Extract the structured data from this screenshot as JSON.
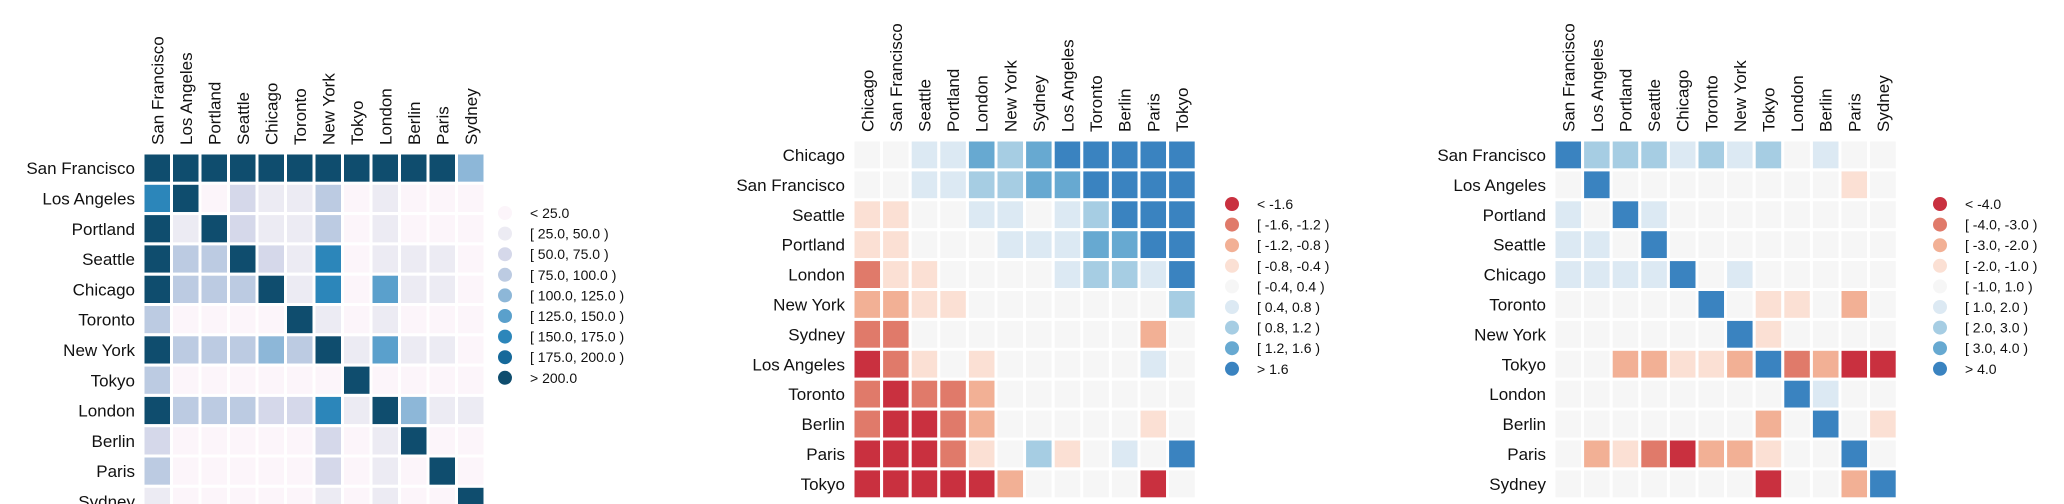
{
  "chart_data": [
    {
      "type": "heatmap",
      "title": "",
      "columns": [
        "San Francisco",
        "Los Angeles",
        "Portland",
        "Seattle",
        "Chicago",
        "Toronto",
        "New York",
        "Tokyo",
        "London",
        "Berlin",
        "Paris",
        "Sydney"
      ],
      "rows": [
        "San Francisco",
        "Los Angeles",
        "Portland",
        "Seattle",
        "Chicago",
        "Toronto",
        "New York",
        "Tokyo",
        "London",
        "Berlin",
        "Paris",
        "Sydney"
      ],
      "legend": {
        "position": "right",
        "labels": [
          "< 25.0",
          "[ 25.0, 50.0 )",
          "[ 50.0, 75.0 )",
          "[ 75.0, 100.0 )",
          "[ 100.0, 125.0 )",
          "[ 125.0, 150.0 )",
          "[ 150.0, 175.0 )",
          "[ 175.0, 200.0 )",
          "> 200.0"
        ],
        "colors": [
          "#fcf5fa",
          "#ecebf3",
          "#d5d8ea",
          "#bccbe2",
          "#8db7d8",
          "#5aa0cc",
          "#2c86ba",
          "#16699a",
          "#0f4d6e"
        ]
      },
      "bins": [
        [
          8,
          8,
          8,
          8,
          8,
          8,
          8,
          8,
          8,
          8,
          8,
          4
        ],
        [
          6,
          8,
          0,
          2,
          1,
          1,
          3,
          0,
          1,
          0,
          0,
          0
        ],
        [
          8,
          1,
          8,
          2,
          1,
          1,
          3,
          0,
          1,
          0,
          0,
          0
        ],
        [
          8,
          3,
          3,
          8,
          2,
          1,
          6,
          0,
          1,
          1,
          1,
          0
        ],
        [
          8,
          3,
          3,
          3,
          8,
          1,
          6,
          0,
          5,
          1,
          1,
          0
        ],
        [
          3,
          0,
          0,
          0,
          0,
          8,
          1,
          0,
          1,
          0,
          0,
          0
        ],
        [
          8,
          3,
          3,
          3,
          4,
          3,
          8,
          1,
          5,
          1,
          1,
          0
        ],
        [
          3,
          0,
          0,
          0,
          0,
          0,
          0,
          8,
          0,
          0,
          0,
          0
        ],
        [
          8,
          3,
          3,
          3,
          2,
          2,
          6,
          1,
          8,
          4,
          1,
          1
        ],
        [
          2,
          0,
          0,
          0,
          0,
          0,
          2,
          0,
          1,
          8,
          0,
          0
        ],
        [
          3,
          0,
          0,
          0,
          0,
          0,
          2,
          0,
          1,
          0,
          8,
          0
        ],
        [
          1,
          0,
          0,
          0,
          0,
          0,
          1,
          0,
          1,
          0,
          0,
          8
        ]
      ]
    },
    {
      "type": "heatmap",
      "title": "",
      "columns": [
        "Chicago",
        "San Francisco",
        "Seattle",
        "Portland",
        "London",
        "New York",
        "Sydney",
        "Los Angeles",
        "Toronto",
        "Berlin",
        "Paris",
        "Tokyo"
      ],
      "rows": [
        "Chicago",
        "San Francisco",
        "Seattle",
        "Portland",
        "London",
        "New York",
        "Sydney",
        "Los Angeles",
        "Toronto",
        "Berlin",
        "Paris",
        "Tokyo"
      ],
      "legend": {
        "position": "right",
        "labels": [
          "< -1.6",
          "[ -1.6, -1.2 )",
          "[ -1.2, -0.8 )",
          "[ -0.8, -0.4 )",
          "[ -0.4, 0.4 )",
          "[ 0.4, 0.8 )",
          "[ 0.8, 1.2 )",
          "[ 1.2, 1.6 )",
          "> 1.6"
        ],
        "colors": [
          "#c9303f",
          "#e07a6a",
          "#f2b095",
          "#fbe0d4",
          "#f6f6f6",
          "#dce9f3",
          "#a6cde3",
          "#67a9d1",
          "#3a83c0"
        ]
      },
      "bins": [
        [
          4,
          4,
          5,
          5,
          7,
          6,
          7,
          8,
          8,
          8,
          8,
          8
        ],
        [
          4,
          4,
          5,
          5,
          6,
          6,
          7,
          7,
          8,
          8,
          8,
          8
        ],
        [
          3,
          3,
          4,
          4,
          5,
          5,
          4,
          5,
          6,
          8,
          8,
          8
        ],
        [
          3,
          3,
          4,
          4,
          4,
          5,
          5,
          5,
          7,
          7,
          8,
          8
        ],
        [
          1,
          3,
          3,
          4,
          4,
          4,
          4,
          5,
          6,
          6,
          5,
          8
        ],
        [
          2,
          2,
          3,
          3,
          4,
          4,
          4,
          4,
          4,
          4,
          4,
          6
        ],
        [
          1,
          1,
          4,
          4,
          4,
          4,
          4,
          4,
          4,
          4,
          2,
          4
        ],
        [
          0,
          1,
          3,
          4,
          3,
          4,
          4,
          4,
          4,
          4,
          5,
          4
        ],
        [
          1,
          0,
          1,
          1,
          2,
          4,
          4,
          4,
          4,
          4,
          4,
          4
        ],
        [
          1,
          0,
          0,
          1,
          2,
          4,
          4,
          4,
          4,
          4,
          3,
          4
        ],
        [
          0,
          0,
          0,
          1,
          3,
          4,
          6,
          3,
          4,
          5,
          4,
          8
        ],
        [
          0,
          0,
          0,
          0,
          0,
          2,
          4,
          4,
          4,
          4,
          0,
          4
        ]
      ]
    },
    {
      "type": "heatmap",
      "title": "",
      "columns": [
        "San Francisco",
        "Los Angeles",
        "Portland",
        "Seattle",
        "Chicago",
        "Toronto",
        "New York",
        "Tokyo",
        "London",
        "Berlin",
        "Paris",
        "Sydney"
      ],
      "rows": [
        "San Francisco",
        "Los Angeles",
        "Portland",
        "Seattle",
        "Chicago",
        "Toronto",
        "New York",
        "Tokyo",
        "London",
        "Berlin",
        "Paris",
        "Sydney"
      ],
      "legend": {
        "position": "right",
        "labels": [
          "< -4.0",
          "[ -4.0, -3.0 )",
          "[ -3.0, -2.0 )",
          "[ -2.0, -1.0 )",
          "[ -1.0, 1.0 )",
          "[ 1.0, 2.0 )",
          "[ 2.0, 3.0 )",
          "[ 3.0, 4.0 )",
          "> 4.0"
        ],
        "colors": [
          "#c9303f",
          "#e07a6a",
          "#f2b095",
          "#fbe0d4",
          "#f6f6f6",
          "#dce9f3",
          "#a6cde3",
          "#67a9d1",
          "#3a83c0"
        ]
      },
      "bins": [
        [
          8,
          6,
          6,
          6,
          5,
          6,
          5,
          6,
          4,
          5,
          4,
          4
        ],
        [
          4,
          8,
          4,
          4,
          4,
          4,
          4,
          4,
          4,
          4,
          3,
          4
        ],
        [
          5,
          4,
          8,
          5,
          4,
          4,
          4,
          4,
          4,
          4,
          4,
          4
        ],
        [
          5,
          5,
          4,
          8,
          4,
          4,
          4,
          4,
          4,
          4,
          4,
          4
        ],
        [
          5,
          5,
          5,
          5,
          8,
          4,
          5,
          4,
          4,
          4,
          4,
          4
        ],
        [
          4,
          4,
          4,
          4,
          4,
          8,
          4,
          3,
          3,
          4,
          2,
          4
        ],
        [
          4,
          4,
          4,
          4,
          4,
          4,
          8,
          3,
          4,
          4,
          4,
          4
        ],
        [
          4,
          4,
          2,
          2,
          3,
          3,
          2,
          8,
          1,
          2,
          0,
          0
        ],
        [
          4,
          4,
          4,
          4,
          4,
          4,
          4,
          4,
          8,
          5,
          4,
          4
        ],
        [
          4,
          4,
          4,
          4,
          4,
          4,
          4,
          2,
          4,
          8,
          4,
          3
        ],
        [
          4,
          2,
          3,
          1,
          0,
          2,
          2,
          3,
          4,
          4,
          8,
          4
        ],
        [
          4,
          4,
          4,
          4,
          4,
          4,
          4,
          0,
          4,
          4,
          2,
          8
        ]
      ]
    }
  ]
}
